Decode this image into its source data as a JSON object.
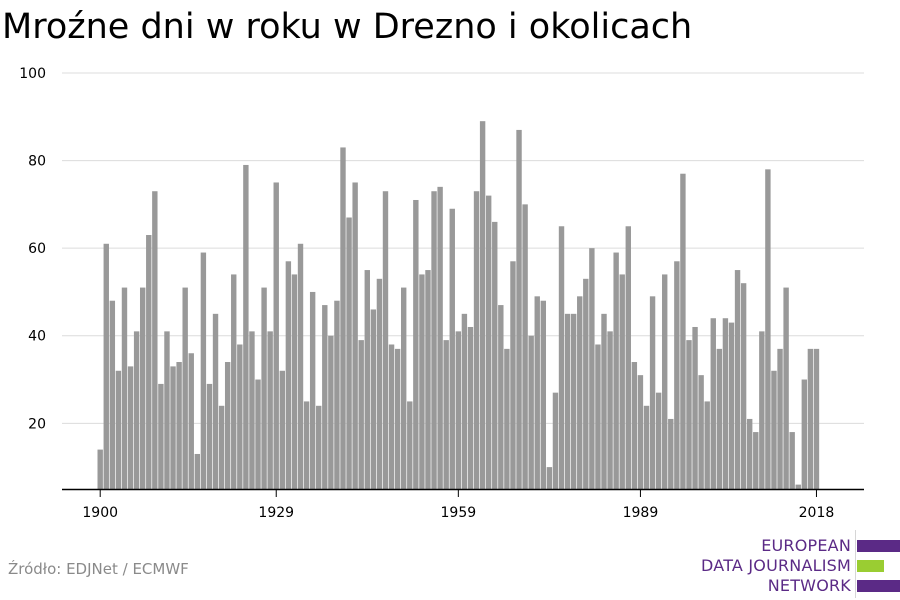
{
  "chart_data": {
    "type": "bar",
    "title": "Mroźne dni w roku w Drezno i okolicach",
    "xlabel": "",
    "ylabel": "",
    "ylim": [
      5,
      100
    ],
    "yticks": [
      20,
      40,
      60,
      80,
      100
    ],
    "xticks": [
      1900,
      1929,
      1959,
      1989,
      2018
    ],
    "grid": true,
    "bar_color": "#999999",
    "years_start": 1900,
    "values": [
      14,
      61,
      48,
      32,
      51,
      33,
      41,
      51,
      63,
      73,
      29,
      41,
      33,
      34,
      51,
      36,
      13,
      59,
      29,
      45,
      24,
      34,
      54,
      38,
      79,
      41,
      30,
      51,
      41,
      75,
      32,
      57,
      54,
      61,
      25,
      50,
      24,
      47,
      40,
      48,
      83,
      67,
      75,
      39,
      55,
      46,
      53,
      73,
      38,
      37,
      51,
      25,
      71,
      54,
      55,
      73,
      74,
      39,
      69,
      41,
      45,
      42,
      73,
      89,
      72,
      66,
      47,
      37,
      57,
      87,
      70,
      40,
      49,
      48,
      10,
      27,
      65,
      45,
      45,
      49,
      53,
      60,
      38,
      45,
      41,
      59,
      54,
      65,
      34,
      31,
      24,
      49,
      27,
      54,
      21,
      57,
      77,
      39,
      42,
      31,
      25,
      44,
      37,
      44,
      43,
      55,
      52,
      21,
      18,
      41,
      78,
      32,
      37,
      51,
      18,
      6,
      30,
      37,
      37
    ]
  },
  "source": "Źródło: EDJNet / ECMWF",
  "logo": {
    "lines": [
      "EUROPEAN",
      "DATA JOURNALISM",
      "NETWORK"
    ],
    "colors": {
      "purple": "#5b2a86",
      "green": "#9acd32"
    }
  }
}
